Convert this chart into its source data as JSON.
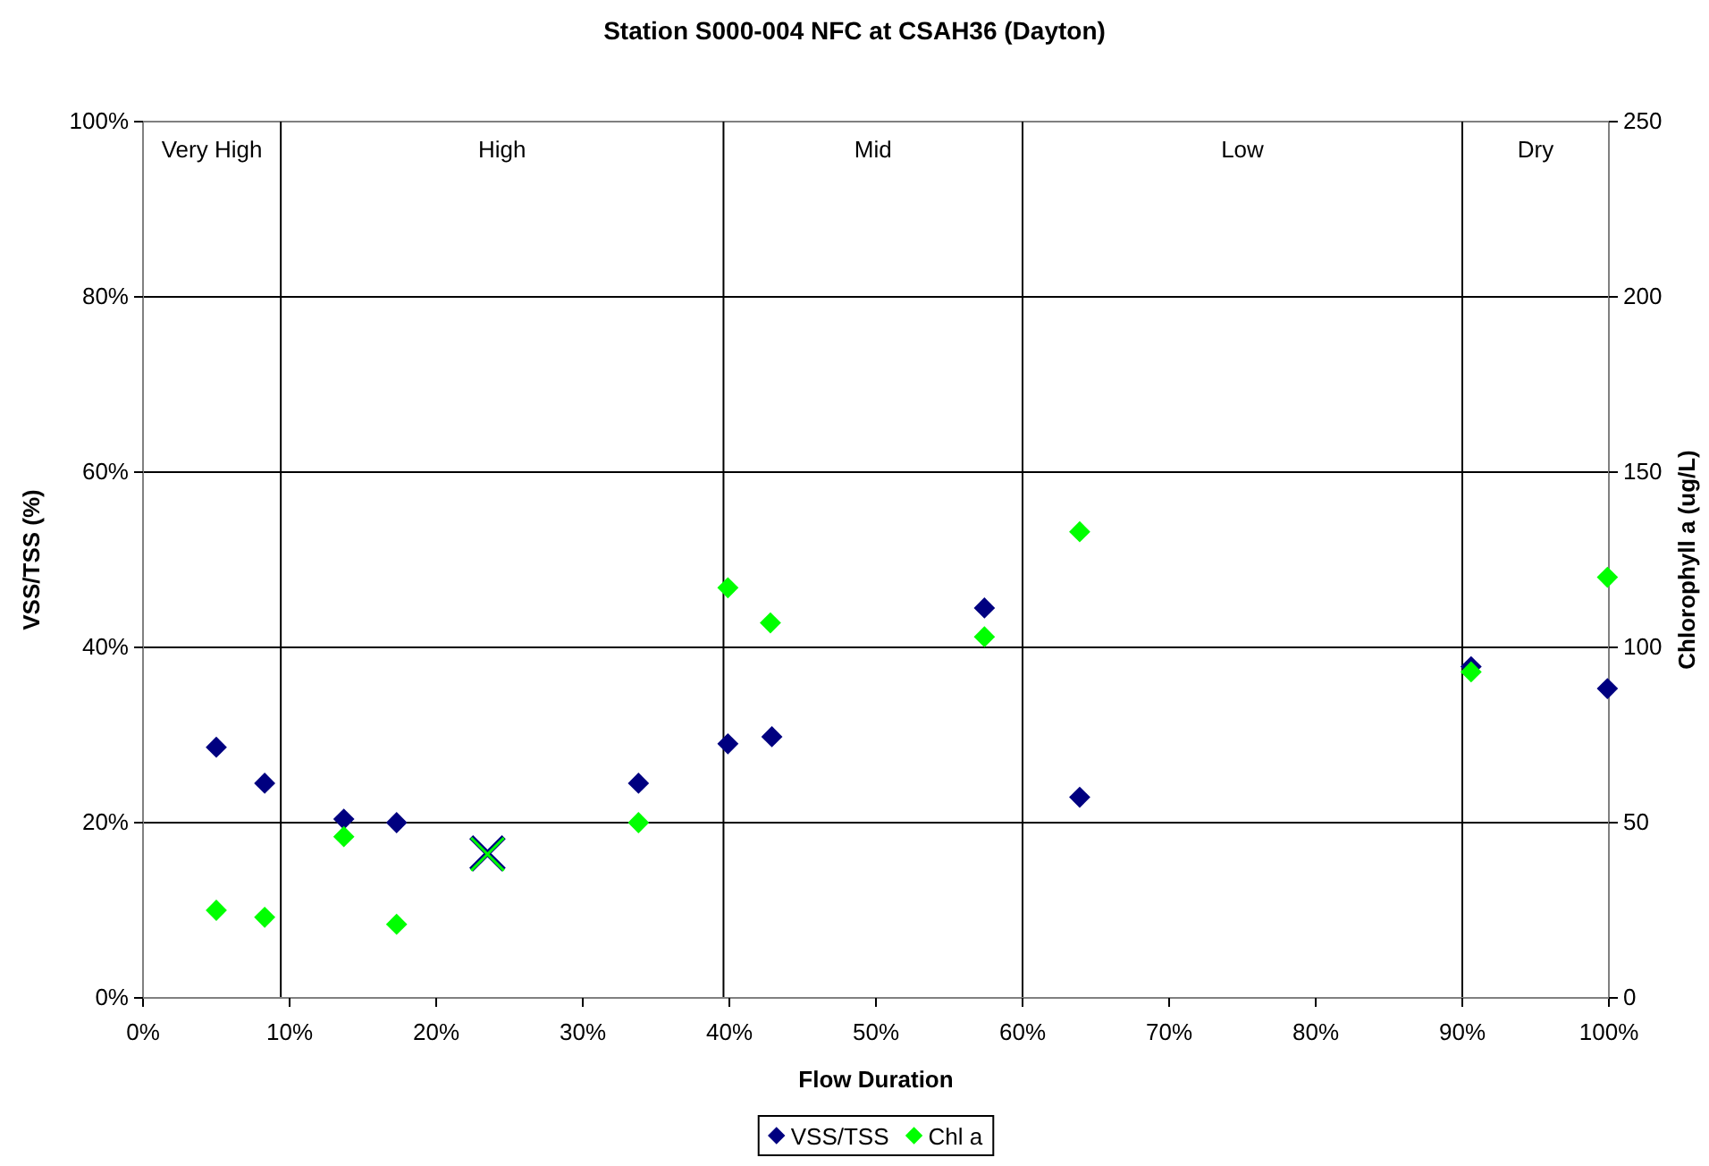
{
  "chart_data": {
    "type": "scatter",
    "title": "Station S000-004 NFC at CSAH36 (Dayton)",
    "xlabel": "Flow Duration",
    "ylabel": "VSS/TSS (%)",
    "y2label": "Chlorophyll a (ug/L)",
    "xlim": [
      0,
      100
    ],
    "xticks": [
      {
        "value": 0,
        "label": "0%"
      },
      {
        "value": 10,
        "label": "10%"
      },
      {
        "value": 20,
        "label": "20%"
      },
      {
        "value": 30,
        "label": "30%"
      },
      {
        "value": 40,
        "label": "40%"
      },
      {
        "value": 50,
        "label": "50%"
      },
      {
        "value": 60,
        "label": "60%"
      },
      {
        "value": 70,
        "label": "70%"
      },
      {
        "value": 80,
        "label": "80%"
      },
      {
        "value": 90,
        "label": "90%"
      },
      {
        "value": 100,
        "label": "100%"
      }
    ],
    "ylim": [
      0,
      100
    ],
    "yticks": [
      {
        "value": 0,
        "label": "0%"
      },
      {
        "value": 20,
        "label": "20%"
      },
      {
        "value": 40,
        "label": "40%"
      },
      {
        "value": 60,
        "label": "60%"
      },
      {
        "value": 80,
        "label": "80%"
      },
      {
        "value": 100,
        "label": "100%"
      }
    ],
    "y2lim": [
      0,
      250
    ],
    "y2ticks": [
      0,
      50,
      100,
      150,
      200,
      250
    ],
    "grid": "y",
    "legend": "bottom",
    "marker": "diamond",
    "series": [
      {
        "name": "VSS/TSS",
        "color": "#000080",
        "x": [
          5.0,
          8.3,
          13.7,
          17.3,
          33.8,
          39.9,
          42.9,
          57.4,
          63.9,
          90.6,
          99.9
        ],
        "values": [
          28.6,
          24.5,
          20.4,
          20.0,
          24.5,
          29.0,
          29.8,
          44.5,
          22.9,
          37.8,
          35.3
        ]
      },
      {
        "name": "Chl a",
        "color": "#00ff00",
        "axis": "y2",
        "x": [
          5.0,
          8.3,
          13.7,
          17.3,
          33.8,
          39.9,
          42.8,
          57.4,
          63.9,
          90.6,
          99.9
        ],
        "values": [
          25,
          23,
          46,
          21,
          50,
          117,
          107,
          103,
          133,
          93,
          120
        ]
      },
      {
        "color": "#000080",
        "marker": "cross",
        "x": [
          23.5
        ],
        "values": [
          16.5
        ]
      },
      {
        "color": "#00ff00",
        "marker": "cross",
        "axis": "y2",
        "x": [
          23.5
        ],
        "values": [
          41
        ]
      }
    ],
    "ref_lines": [
      {
        "axis": "x",
        "value": 9.4
      },
      {
        "axis": "x",
        "value": 39.6
      },
      {
        "axis": "x",
        "value": 60
      },
      {
        "axis": "x",
        "value": 90
      }
    ],
    "annotations": [
      "Very High",
      "High",
      "Mid",
      "Low",
      "Dry"
    ]
  }
}
